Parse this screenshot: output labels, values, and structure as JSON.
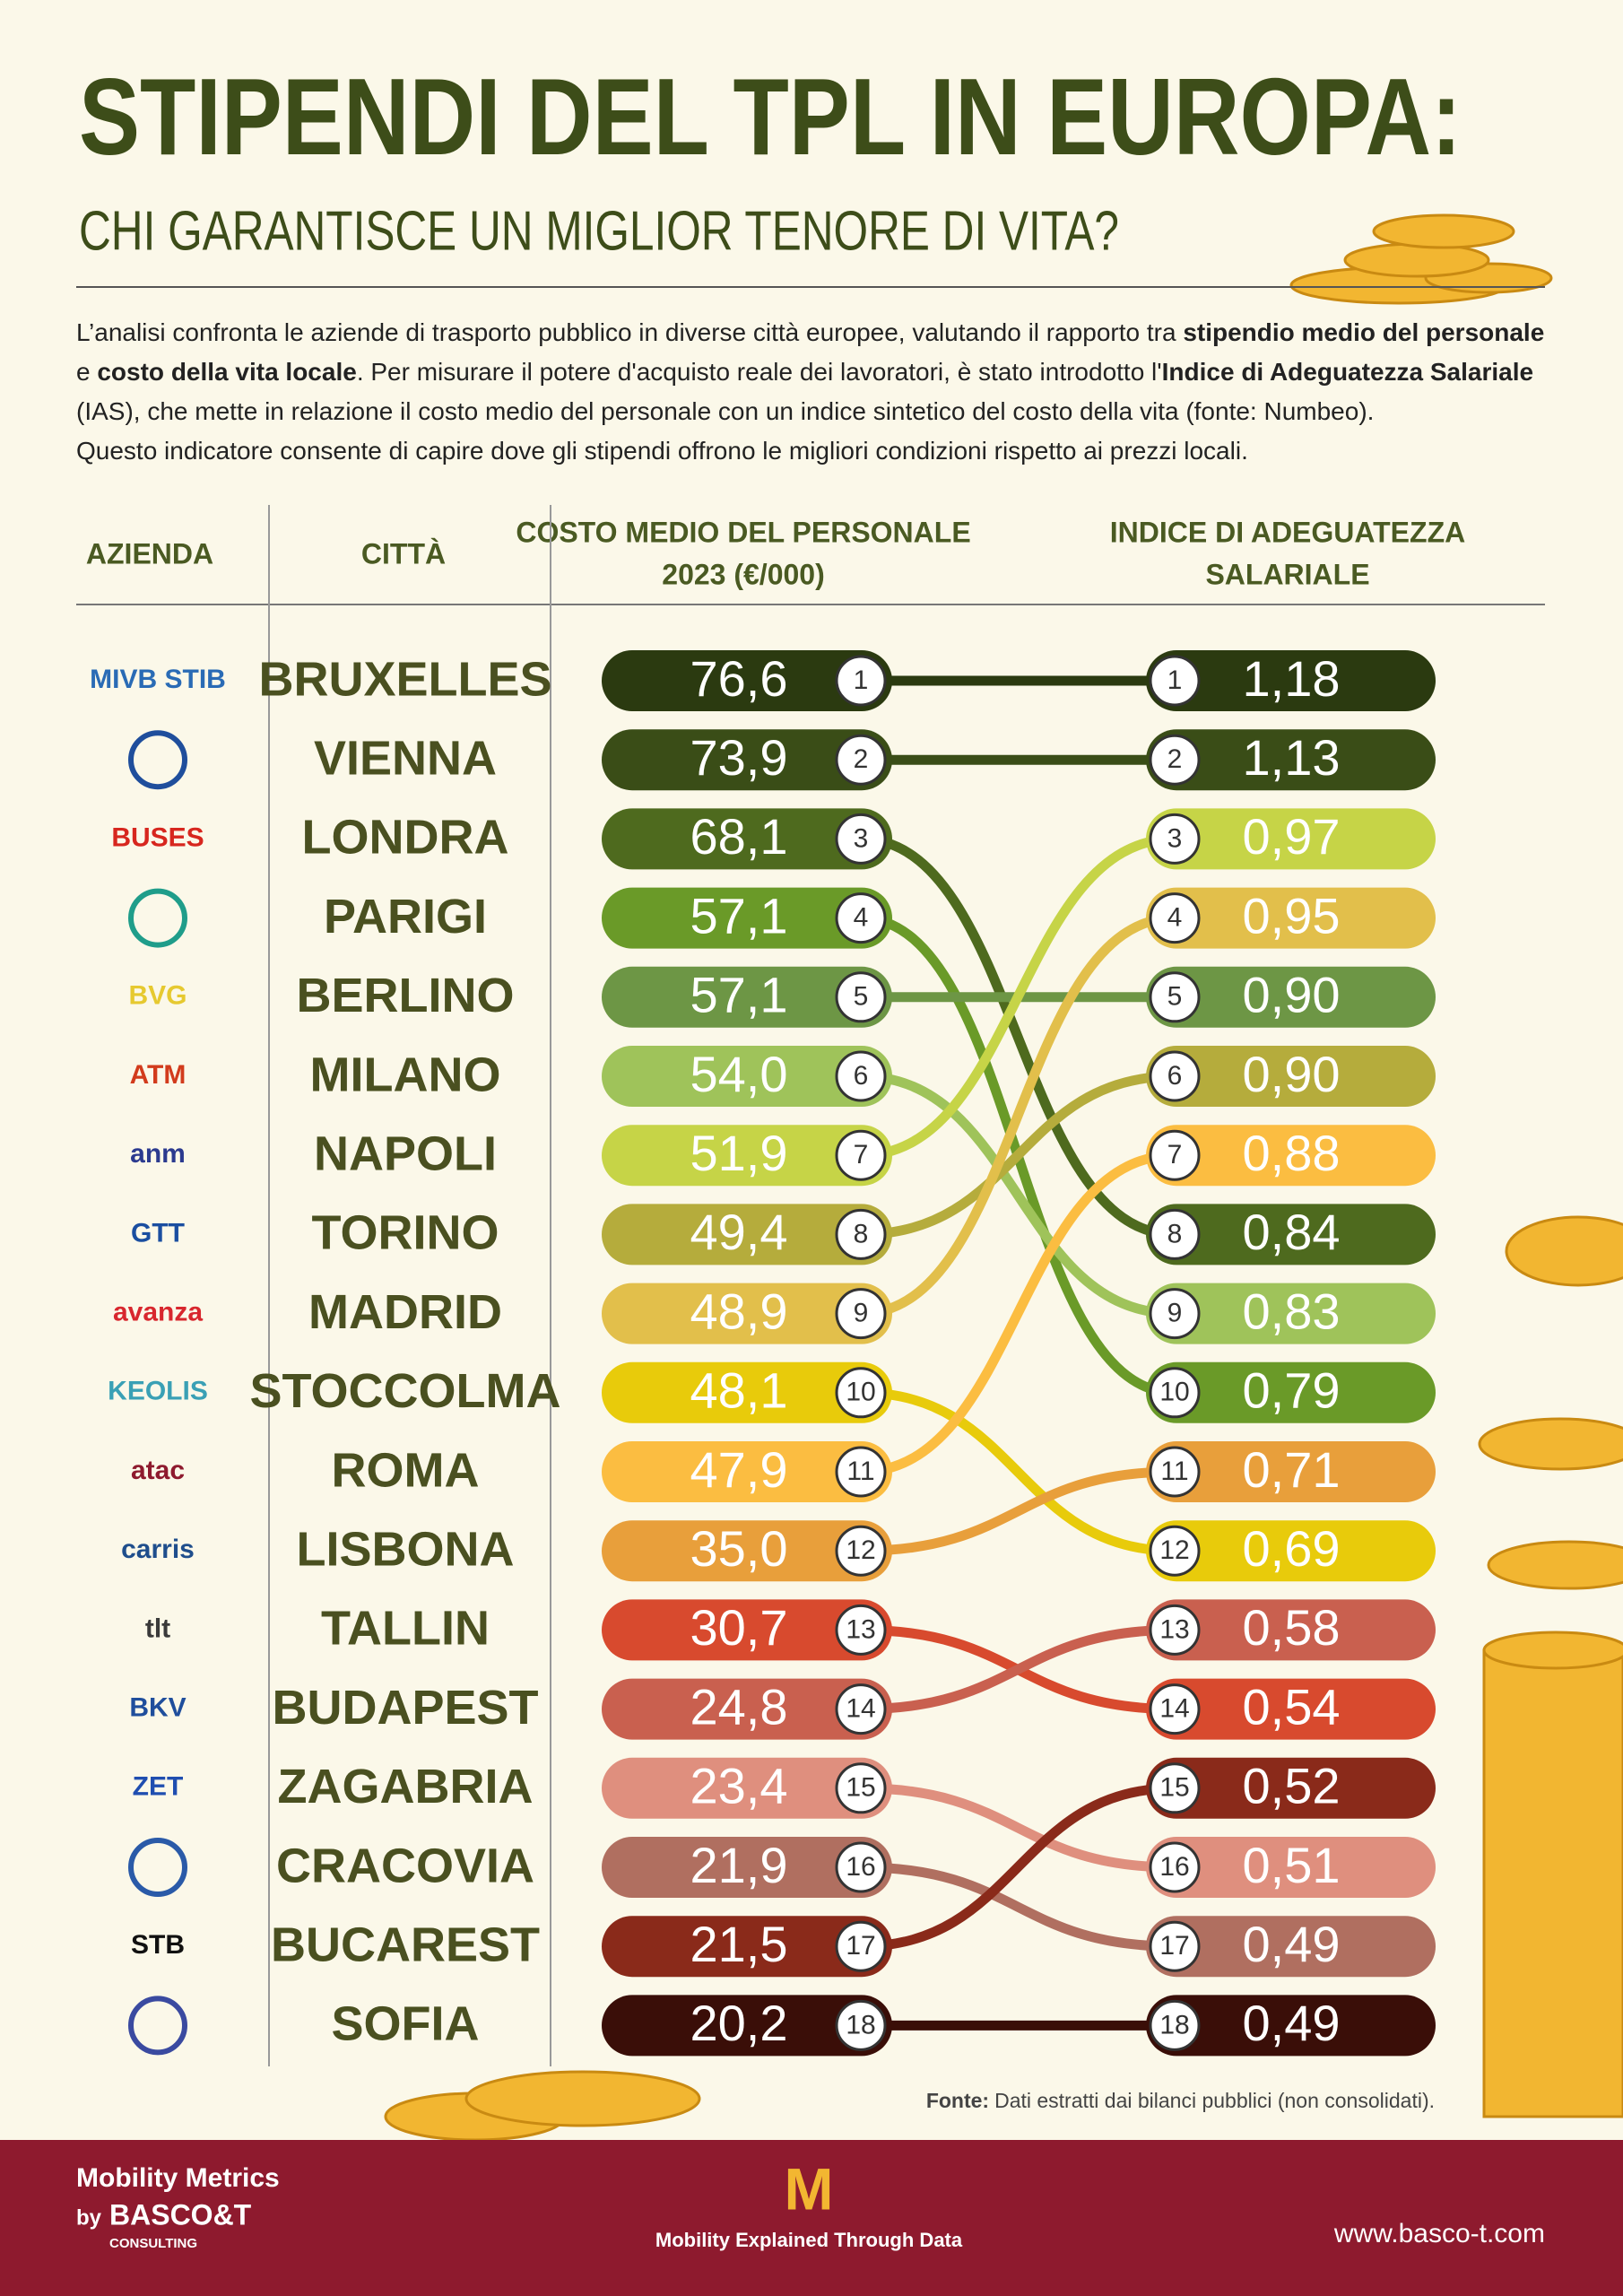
{
  "header": {
    "title": "STIPENDI DEL TPL IN EUROPA:",
    "subtitle": "CHI GARANTISCE UN MIGLIOR TENORE DI VITA?"
  },
  "intro": {
    "lines": [
      [
        {
          "text": "L’analisi confronta le aziende di trasporto pubblico in diverse città europee, valutando il rapporto tra ",
          "bold": false
        },
        {
          "text": "stipendio medio del personale",
          "bold": true
        }
      ],
      [
        {
          "text": "e ",
          "bold": false
        },
        {
          "text": "costo della vita locale",
          "bold": true
        },
        {
          "text": ". Per misurare il potere d'acquisto reale dei lavoratori, è stato introdotto l'",
          "bold": false
        },
        {
          "text": "Indice di Adeguatezza Salariale",
          "bold": true
        }
      ],
      [
        {
          "text": "(IAS), che mette in relazione il costo medio del personale con un indice sintetico del costo della vita (fonte: Numbeo).",
          "bold": false
        }
      ],
      [
        {
          "text": "Questo indicatore consente di capire dove gli stipendi offrono le migliori condizioni rispetto ai prezzi locali.",
          "bold": false
        }
      ]
    ]
  },
  "table": {
    "headers": {
      "company": "AZIENDA",
      "city": "CITTÀ",
      "cost": [
        "COSTO MEDIO DEL PERSONALE",
        "2023 (€/000)"
      ],
      "ias": [
        "INDICE DI ADEGUATEZZA",
        "SALARIALE"
      ]
    },
    "rows": [
      {
        "logo": "MIVB STIB",
        "logo_color": "#2a6bb5",
        "city": "BRUXELLES",
        "cost": {
          "value": 76.6,
          "label": "76,6"
        },
        "cost_rank": 1,
        "ias": {
          "value": 1.18,
          "label": "1,18"
        },
        "ias_rank": 1,
        "color": "#2b3a10"
      },
      {
        "logo": null,
        "logo_color": "#1f4e9c",
        "city": "VIENNA",
        "cost": {
          "value": 73.9,
          "label": "73,9"
        },
        "cost_rank": 2,
        "ias": {
          "value": 1.13,
          "label": "1,13"
        },
        "ias_rank": 2,
        "color": "#3a4d17"
      },
      {
        "logo": "BUSES",
        "logo_color": "#d7261e",
        "city": "LONDRA",
        "cost": {
          "value": 68.1,
          "label": "68,1"
        },
        "cost_rank": 3,
        "ias": {
          "value": 0.84,
          "label": "0,84"
        },
        "ias_rank": 8,
        "color": "#4e6a1e"
      },
      {
        "logo": null,
        "logo_color": "#1f9d8a",
        "city": "PARIGI",
        "cost": {
          "value": 57.1,
          "label": "57,1"
        },
        "cost_rank": 4,
        "ias": {
          "value": 0.79,
          "label": "0,79"
        },
        "ias_rank": 10,
        "color": "#6a9a28"
      },
      {
        "logo": "BVG",
        "logo_color": "#e6c930",
        "city": "BERLINO",
        "cost": {
          "value": 57.1,
          "label": "57,1"
        },
        "cost_rank": 5,
        "ias": {
          "value": 0.9,
          "label": "0,90"
        },
        "ias_rank": 5,
        "color": "#6d9645"
      },
      {
        "logo": "ATM",
        "logo_color": "#d23b1c",
        "city": "MILANO",
        "cost": {
          "value": 54.0,
          "label": "54,0"
        },
        "cost_rank": 6,
        "ias": {
          "value": 0.83,
          "label": "0,83"
        },
        "ias_rank": 9,
        "color": "#9fc35a"
      },
      {
        "logo": "anm",
        "logo_color": "#2b3a8f",
        "city": "NAPOLI",
        "cost": {
          "value": 51.9,
          "label": "51,9"
        },
        "cost_rank": 7,
        "ias": {
          "value": 0.97,
          "label": "0,97"
        },
        "ias_rank": 3,
        "color": "#c6d447"
      },
      {
        "logo": "GTT",
        "logo_color": "#1a4ea0",
        "city": "TORINO",
        "cost": {
          "value": 49.4,
          "label": "49,4"
        },
        "cost_rank": 8,
        "ias": {
          "value": 0.9,
          "label": "0,90"
        },
        "ias_rank": 6,
        "color": "#b5ac3c"
      },
      {
        "logo": "avanza",
        "logo_color": "#d8272e",
        "city": "MADRID",
        "cost": {
          "value": 48.9,
          "label": "48,9"
        },
        "cost_rank": 9,
        "ias": {
          "value": 0.95,
          "label": "0,95"
        },
        "ias_rank": 4,
        "color": "#e2bf4b"
      },
      {
        "logo": "KEOLIS",
        "logo_color": "#3aa0b5",
        "city": "STOCCOLMA",
        "cost": {
          "value": 48.1,
          "label": "48,1"
        },
        "cost_rank": 10,
        "ias": {
          "value": 0.69,
          "label": "0,69"
        },
        "ias_rank": 12,
        "color": "#e8cb0b"
      },
      {
        "logo": "atac",
        "logo_color": "#8e1a2e",
        "city": "ROMA",
        "cost": {
          "value": 47.9,
          "label": "47,9"
        },
        "cost_rank": 11,
        "ias": {
          "value": 0.88,
          "label": "0,88"
        },
        "ias_rank": 7,
        "color": "#fbbd41"
      },
      {
        "logo": "carris",
        "logo_color": "#1f4e8c",
        "city": "LISBONA",
        "cost": {
          "value": 35.0,
          "label": "35,0"
        },
        "cost_rank": 12,
        "ias": {
          "value": 0.71,
          "label": "0,71"
        },
        "ias_rank": 11,
        "color": "#e89f3b"
      },
      {
        "logo": "tlt",
        "logo_color": "#3a3a3a",
        "city": "TALLIN",
        "cost": {
          "value": 30.7,
          "label": "30,7"
        },
        "cost_rank": 13,
        "ias": {
          "value": 0.54,
          "label": "0,54"
        },
        "ias_rank": 14,
        "color": "#d84a2e"
      },
      {
        "logo": "BKV",
        "logo_color": "#1f4e9c",
        "city": "BUDAPEST",
        "cost": {
          "value": 24.8,
          "label": "24,8"
        },
        "cost_rank": 14,
        "ias": {
          "value": 0.58,
          "label": "0,58"
        },
        "ias_rank": 13,
        "color": "#c9604f"
      },
      {
        "logo": "ZET",
        "logo_color": "#1f4eb0",
        "city": "ZAGABRIA",
        "cost": {
          "value": 23.4,
          "label": "23,4"
        },
        "cost_rank": 15,
        "ias": {
          "value": 0.51,
          "label": "0,51"
        },
        "ias_rank": 16,
        "color": "#df8f7e"
      },
      {
        "logo": null,
        "logo_color": "#2a5aa8",
        "city": "CRACOVIA",
        "cost": {
          "value": 21.9,
          "label": "21,9"
        },
        "cost_rank": 16,
        "ias": {
          "value": 0.49,
          "label": "0,49"
        },
        "ias_rank": 17,
        "color": "#b06f60"
      },
      {
        "logo": "STB",
        "logo_color": "#111111",
        "city": "BUCAREST",
        "cost": {
          "value": 21.5,
          "label": "21,5"
        },
        "cost_rank": 17,
        "ias": {
          "value": 0.52,
          "label": "0,52"
        },
        "ias_rank": 15,
        "color": "#8a2a1a"
      },
      {
        "logo": null,
        "logo_color": "#3a4aa0",
        "city": "SOFIA",
        "cost": {
          "value": 20.2,
          "label": "20,2"
        },
        "cost_rank": 18,
        "ias": {
          "value": 0.49,
          "label": "0,49"
        },
        "ias_rank": 18,
        "color": "#3a0e08"
      }
    ]
  },
  "source": {
    "label": "Fonte:",
    "text": "Dati estratti dai bilanci pubblici (non consolidati)."
  },
  "footer": {
    "brand": "Mobility Metrics",
    "by": "by",
    "company": "BASCO&T",
    "company_sub": "CONSULTING",
    "logo": "M",
    "tagline": "Mobility Explained Through Data",
    "url": "www.basco-t.com"
  }
}
